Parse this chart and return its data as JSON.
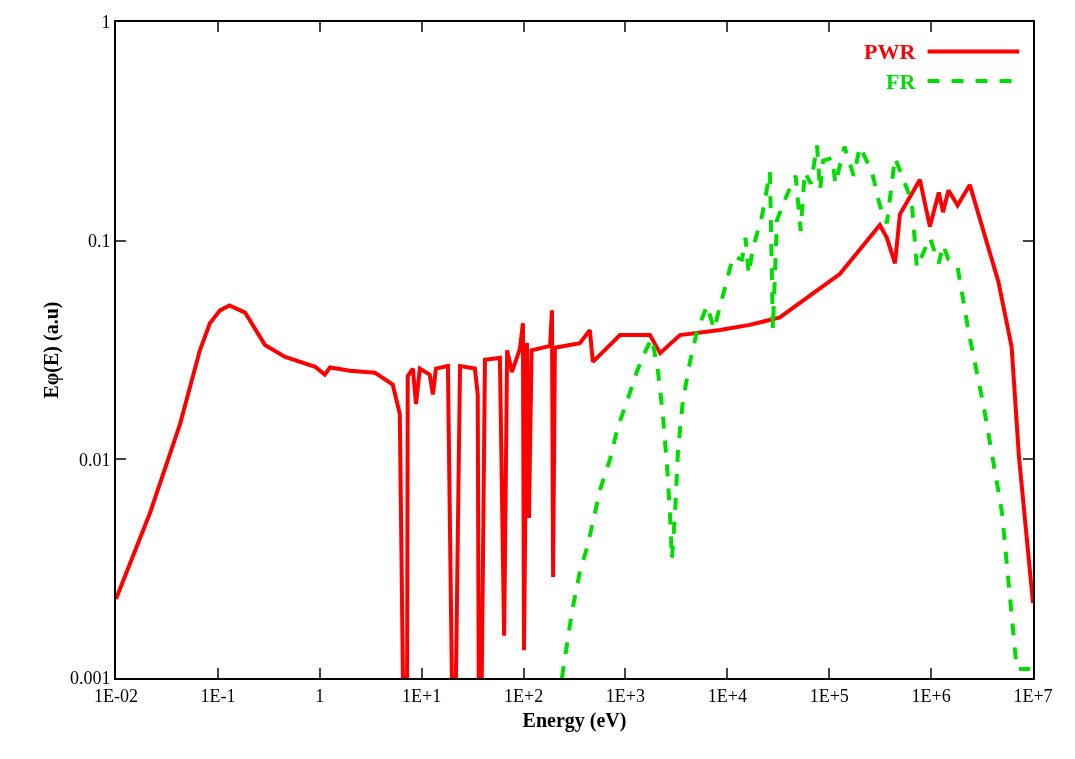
{
  "chart_data": {
    "type": "line",
    "xlabel": "Energy (eV)",
    "ylabel": "Eφ(E) (a.u)",
    "log": "xy",
    "legend": "top right",
    "marker": "none",
    "xlim": [
      0.01,
      10000000
    ],
    "ylim": [
      0.001,
      1
    ],
    "xticks": [
      {
        "value": 0.01,
        "label": "1E-02"
      },
      {
        "value": 0.1,
        "label": "1E-1"
      },
      1,
      {
        "value": 10,
        "label": "1E+1"
      },
      {
        "value": 100,
        "label": "1E+2"
      },
      {
        "value": 1000,
        "label": "1E+3"
      },
      {
        "value": 10000,
        "label": "1E+4"
      },
      {
        "value": 100000,
        "label": "1E+5"
      },
      {
        "value": 1000000,
        "label": "1E+6"
      },
      {
        "value": 10000000,
        "label": "1E+7"
      }
    ],
    "yticks": [
      0.001,
      0.01,
      0.1,
      1
    ],
    "series": [
      {
        "name": "PWR",
        "color": "#ff0000",
        "line_style": "solid",
        "x": [
          0.01,
          0.0216,
          0.0425,
          0.0667,
          0.0835,
          0.105,
          0.13,
          0.185,
          0.29,
          0.457,
          0.9,
          1.12,
          1.26,
          1.98,
          3.47,
          5.2,
          6.1,
          6.55,
          7.2,
          7.3,
          8.2,
          8.8,
          9.6,
          12,
          12.9,
          13.8,
          18.1,
          19.8,
          21.7,
          23.8,
          33.3,
          35.5,
          36.3,
          38.9,
          41.8,
          58.6,
          64.5,
          69,
          77,
          92,
          98.6,
          101,
          108,
          113,
          120,
          182,
          190,
          195,
          203,
          357,
          447,
          479,
          883,
          1740,
          2190,
          3430,
          8500,
          16600,
          32800,
          64600,
          127000,
          314000,
          368000,
          442000,
          494000,
          776000,
          973000,
          1190000,
          1310000,
          1480000,
          1820000,
          2400000,
          4570000,
          6170000,
          7280000,
          10000000
        ],
        "values": [
          0.0023,
          0.0057,
          0.0145,
          0.0316,
          0.0419,
          0.048,
          0.0505,
          0.0469,
          0.0333,
          0.0294,
          0.0265,
          0.0244,
          0.0263,
          0.0254,
          0.0249,
          0.022,
          0.0161,
          0.001,
          0.001,
          0.024,
          0.026,
          0.0179,
          0.026,
          0.0244,
          0.0198,
          0.026,
          0.0267,
          0.001,
          0.001,
          0.0267,
          0.026,
          0.0198,
          0.001,
          0.001,
          0.0285,
          0.0291,
          0.00156,
          0.0315,
          0.0251,
          0.032,
          0.0419,
          0.00134,
          0.034,
          0.0054,
          0.0315,
          0.033,
          0.048,
          0.0029,
          0.0324,
          0.034,
          0.039,
          0.0279,
          0.037,
          0.037,
          0.0306,
          0.037,
          0.039,
          0.0412,
          0.0446,
          0.056,
          0.0703,
          0.118,
          0.103,
          0.0787,
          0.132,
          0.19,
          0.116,
          0.166,
          0.135,
          0.17,
          0.145,
          0.18,
          0.065,
          0.0327,
          0.0103,
          0.0022
        ]
      },
      {
        "name": "FR",
        "color": "#00dd00",
        "line_style": "dashed",
        "x": [
          238,
          299,
          357,
          417,
          479,
          562,
          705,
          843,
          1040,
          1290,
          1620,
          1820,
          2090,
          2340,
          2580,
          2740,
          2860,
          3060,
          3280,
          3660,
          4300,
          5010,
          6310,
          7410,
          11400,
          13900,
          15100,
          16200,
          17800,
          21900,
          26200,
          28000,
          30700,
          37600,
          46800,
          52500,
          57500,
          66100,
          75900,
          81300,
          87100,
          107000,
          115000,
          141000,
          174000,
          200000,
          263000,
          314000,
          368000,
          442000,
          519000,
          646000,
          724000,
          973000,
          1190000,
          1310000,
          1480000,
          1820000,
          2340000,
          3270000,
          4950000,
          6920000,
          9330000
        ],
        "values": [
          0.001,
          0.00202,
          0.00306,
          0.0039,
          0.00515,
          0.00724,
          0.01,
          0.0141,
          0.0185,
          0.0251,
          0.0323,
          0.0358,
          0.0251,
          0.0156,
          0.0089,
          0.00553,
          0.0035,
          0.00553,
          0.011,
          0.0185,
          0.0279,
          0.0381,
          0.0505,
          0.0394,
          0.0848,
          0.082,
          0.103,
          0.0703,
          0.092,
          0.13,
          0.206,
          0.0394,
          0.124,
          0.158,
          0.198,
          0.111,
          0.206,
          0.182,
          0.273,
          0.17,
          0.232,
          0.239,
          0.182,
          0.269,
          0.198,
          0.269,
          0.206,
          0.145,
          0.12,
          0.239,
          0.198,
          0.151,
          0.0755,
          0.103,
          0.0787,
          0.0955,
          0.082,
          0.0755,
          0.0381,
          0.0176,
          0.00577,
          0.0011,
          0.0011
        ]
      }
    ]
  }
}
